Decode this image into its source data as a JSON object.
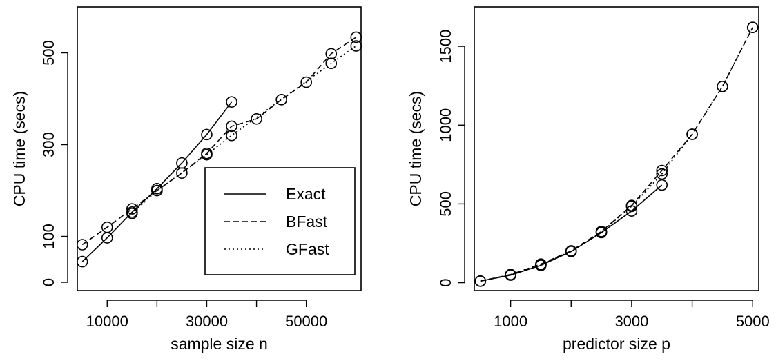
{
  "chart_data": [
    {
      "type": "line",
      "xlabel": "sample size n",
      "ylabel": "CPU time (secs)",
      "xlim": [
        4000,
        61000
      ],
      "ylim": [
        -18,
        600
      ],
      "xticks": [
        10000,
        30000,
        50000
      ],
      "yticks": [
        0,
        100,
        300,
        500
      ],
      "grid": false,
      "legend_position": "bottom-right",
      "series": [
        {
          "name": "Exact",
          "dash": "solid",
          "x": [
            5000,
            10000,
            15000,
            20000,
            25000,
            30000,
            35000
          ],
          "y": [
            45,
            97,
            153,
            204,
            260,
            322,
            393
          ]
        },
        {
          "name": "BFast",
          "dash": "dashed",
          "x": [
            5000,
            10000,
            15000,
            20000,
            25000,
            30000,
            35000,
            40000,
            45000,
            50000,
            55000,
            60000
          ],
          "y": [
            82,
            120,
            160,
            200,
            238,
            281,
            340,
            356,
            398,
            436,
            498,
            534
          ]
        },
        {
          "name": "GFast",
          "dash": "dotted",
          "x": [
            15000,
            20000,
            30000,
            35000,
            55000,
            60000
          ],
          "y": [
            150,
            200,
            278,
            320,
            477,
            515
          ]
        }
      ]
    },
    {
      "type": "line",
      "xlabel": "predictor size p",
      "ylabel": "CPU time (secs)",
      "xlim": [
        400,
        5100
      ],
      "ylim": [
        -50,
        1750
      ],
      "xticks": [
        1000,
        3000,
        5000
      ],
      "yticks": [
        0,
        500,
        1000,
        1500
      ],
      "grid": false,
      "series": [
        {
          "name": "Exact",
          "dash": "solid",
          "x": [
            500,
            1000,
            1500,
            2000,
            2500,
            3000,
            3500
          ],
          "y": [
            10,
            48,
            110,
            198,
            318,
            455,
            620
          ]
        },
        {
          "name": "BFast",
          "dash": "dashed",
          "x": [
            500,
            1000,
            1500,
            2000,
            2500,
            3000,
            3500,
            4000,
            4500,
            5000
          ],
          "y": [
            10,
            52,
            118,
            202,
            325,
            490,
            712,
            942,
            1245,
            1620
          ]
        },
        {
          "name": "GFast",
          "dash": "dotted",
          "x": [
            500,
            1000,
            1500,
            2000,
            2500,
            3000,
            3500,
            4000,
            4500,
            5000
          ],
          "y": [
            10,
            50,
            114,
            200,
            322,
            485,
            690,
            942,
            1245,
            1620
          ]
        }
      ]
    }
  ]
}
